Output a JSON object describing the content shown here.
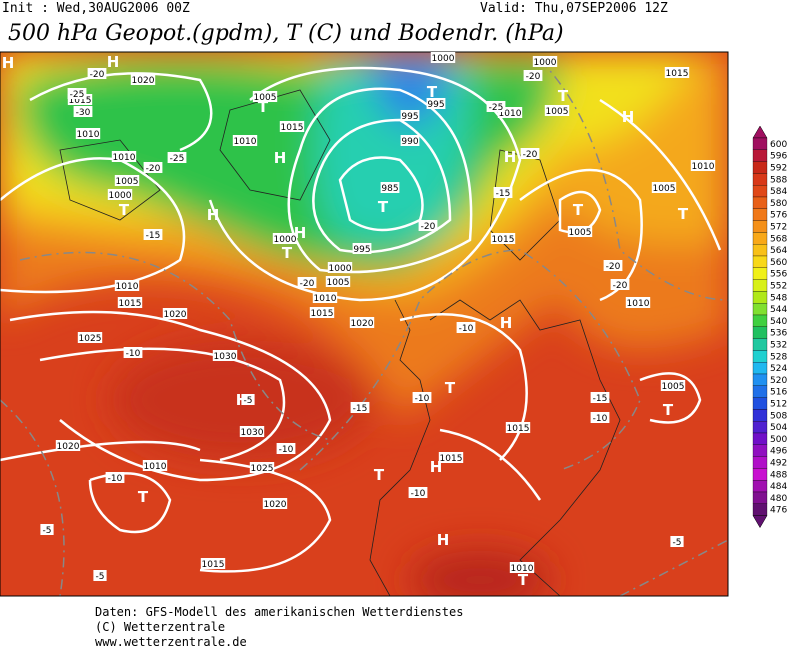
{
  "header": {
    "init": "Init : Wed,30AUG2006 00Z",
    "valid": "Valid: Thu,07SEP2006 12Z",
    "title": "500 hPa Geopot.(gpdm), T (C) und Bodendr. (hPa)"
  },
  "colorbar": {
    "values": [
      600,
      596,
      592,
      588,
      584,
      580,
      576,
      572,
      568,
      564,
      560,
      556,
      552,
      548,
      544,
      540,
      536,
      532,
      528,
      524,
      520,
      516,
      512,
      508,
      504,
      500,
      496,
      492,
      488,
      484,
      480,
      476
    ],
    "colors": [
      "#a01060",
      "#b81838",
      "#c82818",
      "#d83818",
      "#e04818",
      "#e86018",
      "#f07818",
      "#f49018",
      "#f8a818",
      "#f8c018",
      "#f8d818",
      "#f0f018",
      "#d8f018",
      "#b0e818",
      "#80e030",
      "#40d040",
      "#20c060",
      "#20c8a0",
      "#20d0d0",
      "#20b8f0",
      "#2090f0",
      "#2070e8",
      "#2050e0",
      "#3030d8",
      "#5020d0",
      "#7010c8",
      "#9010c0",
      "#b010c8",
      "#c810d0",
      "#a010b0",
      "#801090",
      "#601070"
    ]
  },
  "map_labels": [
    "H",
    "H",
    "1020",
    "1015",
    "1010",
    "1010",
    "1005",
    "1000",
    "T",
    "H",
    "1015",
    "1010",
    "1005",
    "T",
    "H",
    "H",
    "T",
    "1000",
    "995",
    "1000",
    "1005",
    "1010",
    "1015",
    "1020",
    "1010",
    "1015",
    "1020",
    "1025",
    "1030",
    "H",
    "1030",
    "1025",
    "1020",
    "1020",
    "1010",
    "T",
    "1015",
    "T",
    "985",
    "990",
    "995",
    "995",
    "1000",
    "T",
    "1010",
    "H",
    "1005",
    "T",
    "1000",
    "H",
    "1010",
    "1005",
    "T",
    "1005",
    "T",
    "1015",
    "H",
    "T",
    "H",
    "T",
    "1015",
    "1015",
    "H",
    "1010",
    "T",
    "1005",
    "T",
    "1010",
    "1015",
    "-20",
    "-25",
    "-30",
    "-25",
    "-20",
    "-15",
    "-10",
    "-5",
    "-10",
    "-5",
    "-5",
    "-15",
    "-10",
    "-10",
    "-10",
    "-10",
    "-15",
    "-20",
    "-20",
    "-25",
    "-20",
    "-20",
    "-15",
    "-10",
    "-5",
    "-20",
    "-20"
  ],
  "footer": [
    "Daten: GFS-Modell des amerikanischen Wetterdienstes",
    "(C) Wetterzentrale",
    "www.wetterzentrale.de"
  ]
}
